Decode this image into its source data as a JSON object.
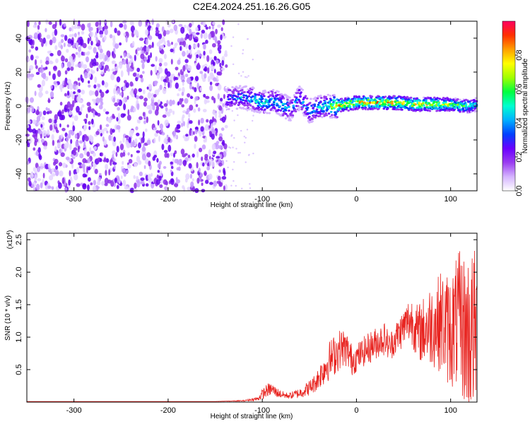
{
  "chart_data": [
    {
      "type": "heatmap",
      "title": "C2E4.2024.251.16.26.G05",
      "xlabel": "Height of straight line (km)",
      "ylabel": "Frequency (Hz)",
      "xlim": [
        -350,
        128
      ],
      "ylim": [
        -50,
        50
      ],
      "xticks": [
        -300,
        -200,
        -100,
        0,
        100
      ],
      "xtick_labels": [
        "-300",
        "-200",
        "-100",
        "0",
        "100"
      ],
      "yticks": [
        -40,
        -20,
        0,
        20,
        40
      ],
      "ytick_labels": [
        "-40",
        "-20",
        "0",
        "20",
        "40"
      ],
      "colorbar": {
        "label": "Normalized spectral amplitude",
        "range": [
          0,
          1
        ],
        "ticks": [
          0.0,
          0.2,
          0.4,
          0.6,
          0.8
        ],
        "tick_labels": [
          "0.0",
          "0.2",
          "0.4",
          "0.6",
          "0.8"
        ],
        "colors": [
          "#ffffff",
          "#d5b4ff",
          "#9a3cf0",
          "#6a00ff",
          "#0040ff",
          "#00b0ff",
          "#00ffd0",
          "#00ff40",
          "#a0ff00",
          "#ffff00",
          "#ffa000",
          "#ff3000",
          "#ff0060"
        ]
      },
      "noise_region": {
        "x_from": -350,
        "x_to": -138,
        "y_range": [
          -50,
          50
        ]
      },
      "ridge": {
        "x": [
          -138,
          -120,
          -110,
          -100,
          -90,
          -80,
          -70,
          -60,
          -50,
          -40,
          -30,
          -20,
          -10,
          0,
          20,
          40,
          60,
          80,
          100,
          110,
          120,
          128
        ],
        "center_hz": [
          4,
          5,
          4,
          2,
          3,
          1,
          -2,
          5,
          -3,
          -1,
          0,
          0,
          1,
          2,
          2,
          2,
          1,
          1,
          1,
          0,
          0,
          1
        ],
        "peak_amplitude": [
          0.35,
          0.45,
          0.5,
          0.55,
          0.5,
          0.55,
          0.45,
          0.5,
          0.45,
          0.5,
          0.6,
          0.9,
          0.8,
          0.85,
          0.9,
          0.9,
          0.85,
          0.85,
          0.75,
          0.7,
          0.6,
          0.5
        ]
      }
    },
    {
      "type": "line",
      "xlabel": "Height of straight line (km)",
      "ylabel": "SNR (10 * v/v)",
      "y_multiplier_label": "(x10",
      "y_multiplier_exp": "4",
      "xlim": [
        -350,
        128
      ],
      "ylim": [
        0,
        2.6
      ],
      "xticks": [
        -300,
        -200,
        -100,
        0,
        100
      ],
      "xtick_labels": [
        "-300",
        "-200",
        "-100",
        "0",
        "100"
      ],
      "yticks": [
        0.5,
        1.0,
        1.5,
        2.0,
        2.5
      ],
      "ytick_labels": [
        "0.5",
        "1.0",
        "1.5",
        "2.0",
        "2.5"
      ],
      "color": "#e8231f",
      "series": [
        {
          "name": "SNR",
          "x": [
            -350,
            -300,
            -250,
            -200,
            -150,
            -120,
            -105,
            -100,
            -95,
            -90,
            -85,
            -80,
            -75,
            -70,
            -65,
            -60,
            -55,
            -50,
            -45,
            -40,
            -35,
            -30,
            -25,
            -20,
            -15,
            -10,
            -5,
            0,
            5,
            10,
            15,
            20,
            25,
            30,
            35,
            40,
            45,
            50,
            55,
            60,
            65,
            70,
            75,
            80,
            85,
            90,
            95,
            100,
            105,
            110,
            115,
            120,
            125,
            128
          ],
          "y": [
            0.01,
            0.01,
            0.01,
            0.01,
            0.01,
            0.02,
            0.05,
            0.12,
            0.18,
            0.2,
            0.15,
            0.12,
            0.1,
            0.1,
            0.12,
            0.14,
            0.18,
            0.22,
            0.28,
            0.38,
            0.5,
            0.62,
            0.7,
            0.78,
            0.85,
            0.8,
            0.65,
            0.68,
            0.75,
            0.8,
            0.85,
            0.9,
            0.95,
            0.98,
            0.85,
            0.95,
            1.05,
            1.15,
            1.25,
            1.25,
            1.05,
            1.1,
            1.15,
            1.2,
            1.2,
            1.25,
            1.15,
            1.1,
            1.2,
            1.25,
            1.1,
            1.05,
            1.1,
            1.0
          ],
          "spread": [
            0.0,
            0.0,
            0.0,
            0.0,
            0.0,
            0.01,
            0.03,
            0.08,
            0.1,
            0.1,
            0.08,
            0.06,
            0.05,
            0.05,
            0.07,
            0.08,
            0.1,
            0.12,
            0.14,
            0.18,
            0.25,
            0.3,
            0.32,
            0.32,
            0.3,
            0.28,
            0.25,
            0.22,
            0.22,
            0.24,
            0.25,
            0.25,
            0.25,
            0.26,
            0.22,
            0.25,
            0.28,
            0.3,
            0.35,
            0.4,
            0.45,
            0.5,
            0.6,
            0.65,
            0.7,
            0.8,
            0.85,
            0.9,
            1.0,
            1.1,
            1.2,
            1.3,
            1.3,
            1.2
          ]
        }
      ]
    }
  ]
}
